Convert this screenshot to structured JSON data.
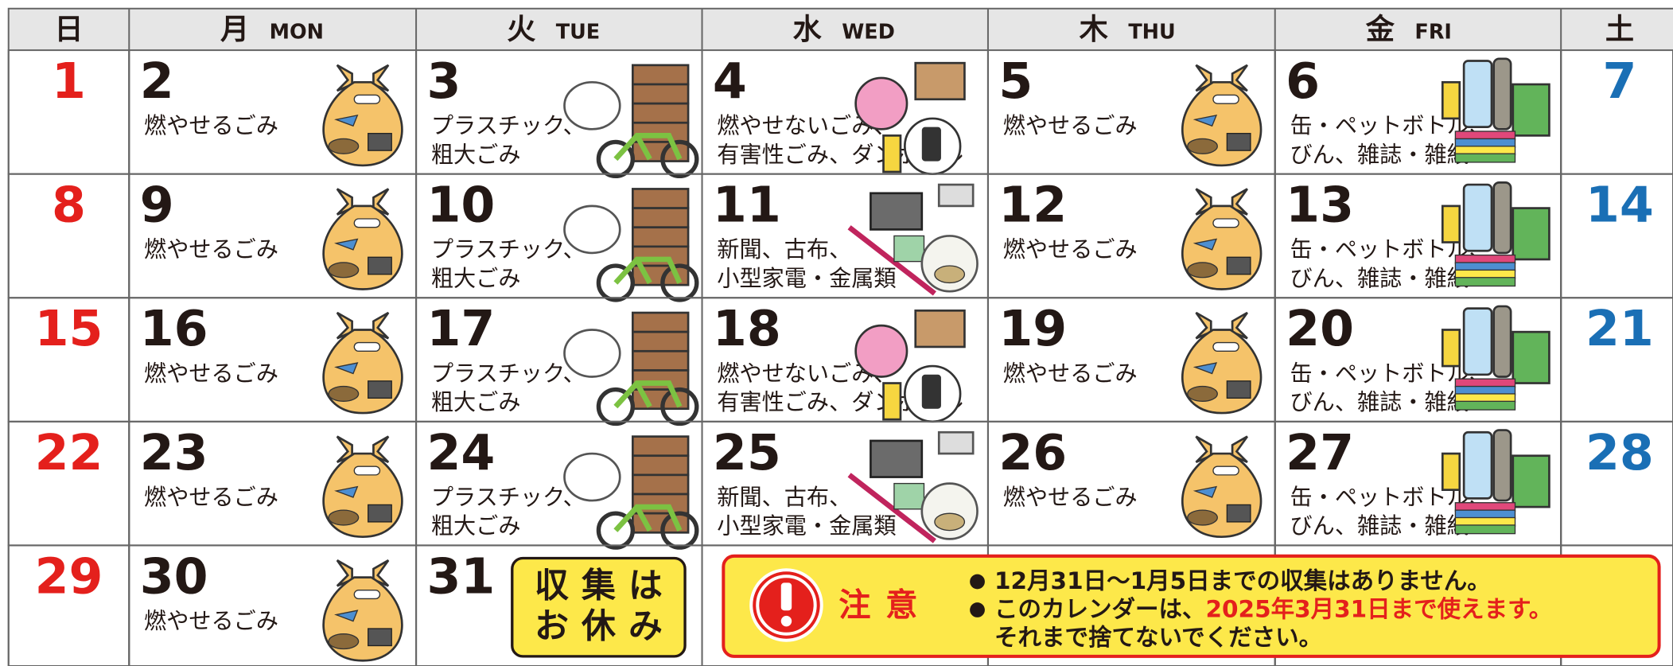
{
  "header": [
    {
      "jp": "日"
    },
    {
      "jp": "月",
      "en": "MON"
    },
    {
      "jp": "火",
      "en": "TUE"
    },
    {
      "jp": "水",
      "en": "WED"
    },
    {
      "jp": "木",
      "en": "THU"
    },
    {
      "jp": "金",
      "en": "FRI"
    },
    {
      "jp": "土"
    }
  ],
  "weeks": [
    {
      "cells": [
        {
          "day": "1",
          "color": "#ffffff"
        },
        {
          "day": "2",
          "lines": [
            "燃やせるごみ"
          ],
          "color": "#fdf7d4"
        },
        {
          "day": "3",
          "lines": [
            "プラスチック、",
            "粗大ごみ"
          ],
          "color": "#d5ebf8"
        },
        {
          "day": "4",
          "lines": [
            "燃やせないごみ、",
            "有害性ごみ、ダンボール"
          ],
          "color": "#f9d9dc"
        },
        {
          "day": "5",
          "lines": [
            "燃やせるごみ"
          ],
          "color": "#fdf7d4"
        },
        {
          "day": "6",
          "lines": [
            "缶・ペットボトル、",
            "びん、雑誌・雑紙"
          ],
          "color": "#d6ebde"
        },
        {
          "day": "7",
          "color": "#ffffff"
        }
      ]
    },
    {
      "cells": [
        {
          "day": "8",
          "color": "#ffffff"
        },
        {
          "day": "9",
          "lines": [
            "燃やせるごみ"
          ],
          "color": "#fdf7d4"
        },
        {
          "day": "10",
          "lines": [
            "プラスチック、",
            "粗大ごみ"
          ],
          "color": "#d5ebf8"
        },
        {
          "day": "11",
          "lines": [
            "新聞、古布、",
            "小型家電・金属類"
          ],
          "color": "#ffffff"
        },
        {
          "day": "12",
          "lines": [
            "燃やせるごみ"
          ],
          "color": "#fdf7d4"
        },
        {
          "day": "13",
          "lines": [
            "缶・ペットボトル、",
            "びん、雑誌・雑紙"
          ],
          "color": "#d6ebde"
        },
        {
          "day": "14",
          "color": "#ffffff"
        }
      ]
    },
    {
      "cells": [
        {
          "day": "15",
          "color": "#ffffff"
        },
        {
          "day": "16",
          "lines": [
            "燃やせるごみ"
          ],
          "color": "#fdf7d4"
        },
        {
          "day": "17",
          "lines": [
            "プラスチック、",
            "粗大ごみ"
          ],
          "color": "#d5ebf8"
        },
        {
          "day": "18",
          "lines": [
            "燃やせないごみ、",
            "有害性ごみ、ダンボール"
          ],
          "color": "#f9d9dc"
        },
        {
          "day": "19",
          "lines": [
            "燃やせるごみ"
          ],
          "color": "#fdf7d4"
        },
        {
          "day": "20",
          "lines": [
            "缶・ペットボトル、",
            "びん、雑誌・雑紙"
          ],
          "color": "#d6ebde"
        },
        {
          "day": "21",
          "color": "#ffffff"
        }
      ]
    },
    {
      "cells": [
        {
          "day": "22",
          "color": "#ffffff"
        },
        {
          "day": "23",
          "lines": [
            "燃やせるごみ"
          ],
          "color": "#fdf7d4"
        },
        {
          "day": "24",
          "lines": [
            "プラスチック、",
            "粗大ごみ"
          ],
          "color": "#d5ebf8"
        },
        {
          "day": "25",
          "lines": [
            "新聞、古布、",
            "小型家電・金属類"
          ],
          "color": "#ffffff"
        },
        {
          "day": "26",
          "lines": [
            "燃やせるごみ"
          ],
          "color": "#fdf7d4"
        },
        {
          "day": "27",
          "lines": [
            "缶・ペットボトル、",
            "びん、雑誌・雑紙"
          ],
          "color": "#d6ebde"
        },
        {
          "day": "28",
          "color": "#ffffff"
        }
      ]
    },
    {
      "cells": [
        {
          "day": "29",
          "color": "#ffffff"
        },
        {
          "day": "30",
          "lines": [
            "燃やせるごみ"
          ],
          "color": "#fdf7d4"
        },
        {
          "day": "31",
          "color": "#ffffff"
        },
        {
          "color": "#ffffff"
        },
        {
          "color": "#ffffff"
        },
        {
          "color": "#ffffff"
        },
        {
          "color": "#ffffff"
        }
      ]
    }
  ],
  "holiday_note": [
    "収集は",
    "お休み"
  ],
  "notice": {
    "label": "注意",
    "items": [
      {
        "parts": [
          "12月31日～1月5日までの収集はありません。"
        ]
      },
      {
        "parts": [
          "このカレンダーは、",
          "2025年3月31日まで使えます。"
        ]
      },
      {
        "parts": [
          "それまで捨てないでください。"
        ]
      }
    ]
  }
}
